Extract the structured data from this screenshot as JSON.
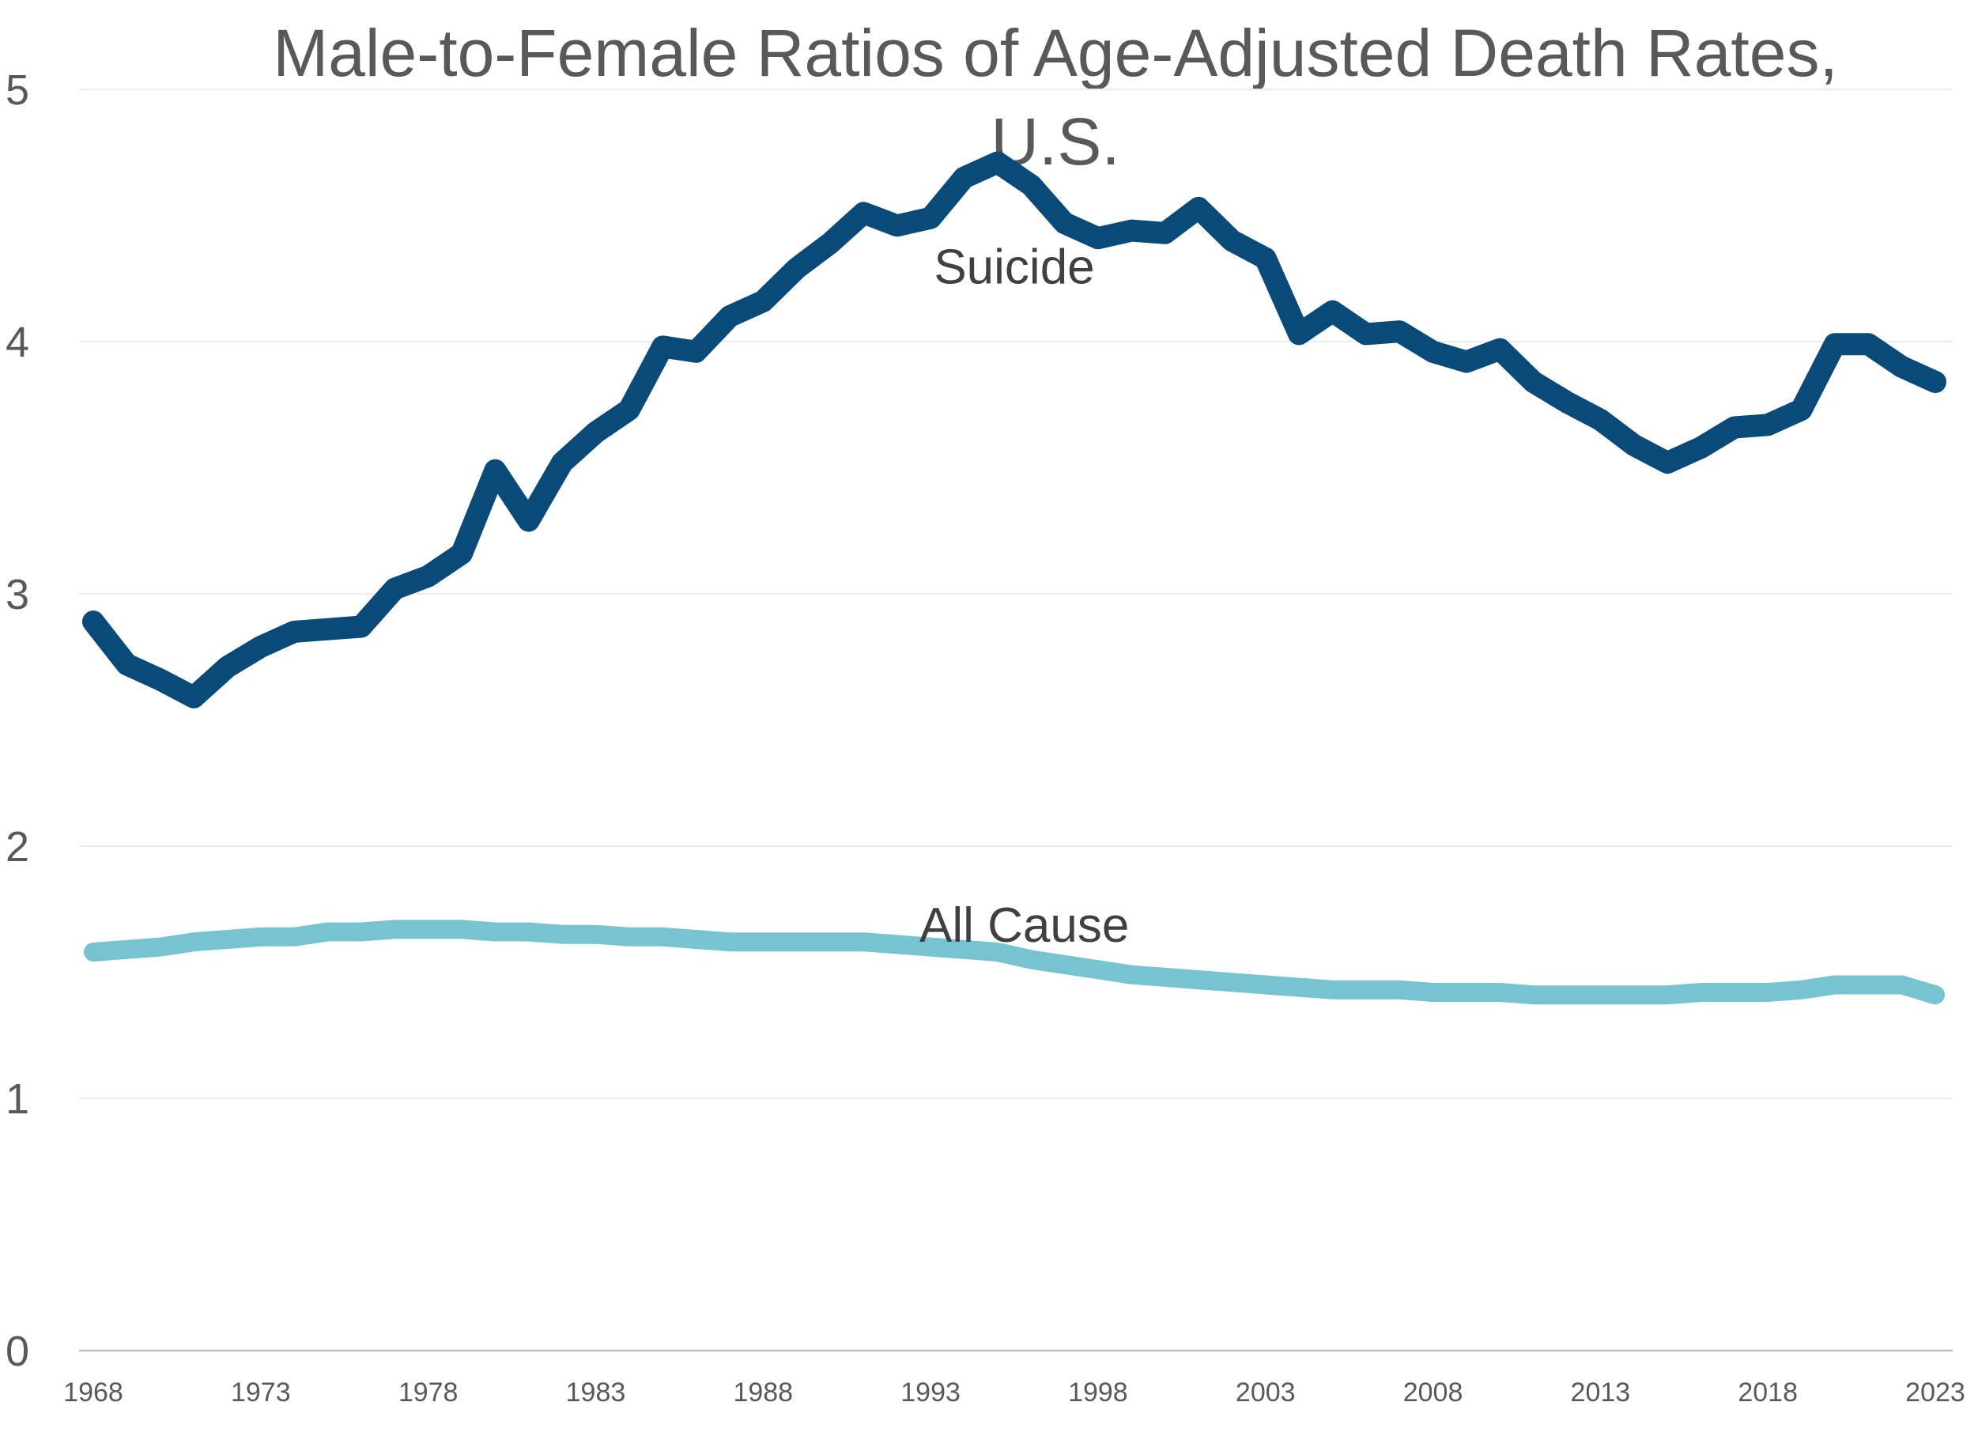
{
  "chart_data": {
    "type": "line",
    "title_line1": "Male-to-Female Ratios of Age-Adjusted Death Rates,",
    "title_line2": "U.S.",
    "xlabel": "",
    "ylabel": "",
    "ylim": [
      0,
      5
    ],
    "yticks": [
      "0",
      "1",
      "2",
      "3",
      "4",
      "5"
    ],
    "xtick_labels": [
      "1968",
      "1973",
      "1978",
      "1983",
      "1988",
      "1993",
      "1998",
      "2003",
      "2008",
      "2013",
      "2018",
      "2023"
    ],
    "grid": true,
    "x": [
      1968,
      1969,
      1970,
      1971,
      1972,
      1973,
      1974,
      1975,
      1976,
      1977,
      1978,
      1979,
      1980,
      1981,
      1982,
      1983,
      1984,
      1985,
      1986,
      1987,
      1988,
      1989,
      1990,
      1991,
      1992,
      1993,
      1994,
      1995,
      1996,
      1997,
      1998,
      1999,
      2000,
      2001,
      2002,
      2003,
      2004,
      2005,
      2006,
      2007,
      2008,
      2009,
      2010,
      2011,
      2012,
      2013,
      2014,
      2015,
      2016,
      2017,
      2018,
      2019,
      2020,
      2021,
      2022,
      2023
    ],
    "series": [
      {
        "name": "Suicide",
        "color": "#0a4a78",
        "values": [
          2.89,
          2.72,
          2.66,
          2.59,
          2.71,
          2.79,
          2.85,
          2.86,
          2.87,
          3.02,
          3.07,
          3.16,
          3.49,
          3.29,
          3.52,
          3.64,
          3.73,
          3.98,
          3.96,
          4.1,
          4.16,
          4.29,
          4.39,
          4.51,
          4.46,
          4.49,
          4.65,
          4.71,
          4.62,
          4.47,
          4.41,
          4.44,
          4.43,
          4.53,
          4.4,
          4.33,
          4.03,
          4.12,
          4.03,
          4.04,
          3.96,
          3.92,
          3.97,
          3.84,
          3.76,
          3.69,
          3.59,
          3.52,
          3.58,
          3.66,
          3.67,
          3.73,
          3.99,
          3.99,
          3.9,
          3.84
        ]
      },
      {
        "name": "All Cause",
        "color": "#78c3d2",
        "values": [
          1.58,
          1.59,
          1.6,
          1.62,
          1.63,
          1.64,
          1.64,
          1.66,
          1.66,
          1.67,
          1.67,
          1.67,
          1.66,
          1.66,
          1.65,
          1.65,
          1.64,
          1.64,
          1.63,
          1.62,
          1.62,
          1.62,
          1.62,
          1.62,
          1.61,
          1.6,
          1.59,
          1.58,
          1.55,
          1.53,
          1.51,
          1.49,
          1.48,
          1.47,
          1.46,
          1.45,
          1.44,
          1.43,
          1.43,
          1.43,
          1.42,
          1.42,
          1.42,
          1.41,
          1.41,
          1.41,
          1.41,
          1.41,
          1.42,
          1.42,
          1.42,
          1.43,
          1.45,
          1.45,
          1.45,
          1.41
        ]
      }
    ]
  }
}
